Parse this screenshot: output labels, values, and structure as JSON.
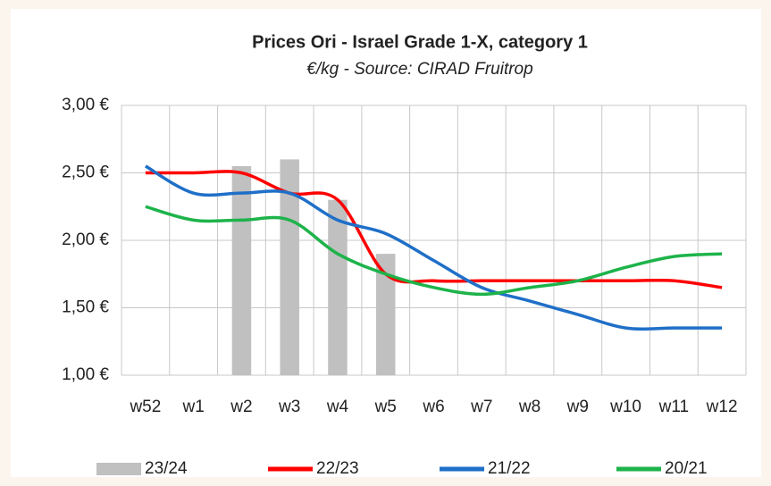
{
  "chart_data": {
    "type": "bar_line",
    "title": "Prices Ori - Israel Grade 1-X, category 1",
    "subtitle": "€/kg - Source: CIRAD Fruitrop",
    "categories": [
      "w52",
      "w1",
      "w2",
      "w3",
      "w4",
      "w5",
      "w6",
      "w7",
      "w8",
      "w9",
      "w10",
      "w11",
      "w12"
    ],
    "series": [
      {
        "name": "23/24",
        "type": "bar",
        "color": "#c0c0c0",
        "values": [
          null,
          null,
          2.55,
          2.6,
          2.3,
          1.9,
          null,
          null,
          null,
          null,
          null,
          null,
          null
        ]
      },
      {
        "name": "22/23",
        "type": "line",
        "color": "#ff0000",
        "values": [
          2.5,
          2.5,
          2.5,
          2.35,
          2.3,
          1.75,
          1.7,
          1.7,
          1.7,
          1.7,
          1.7,
          1.7,
          1.65
        ]
      },
      {
        "name": "21/22",
        "type": "line",
        "color": "#1f6fc8",
        "values": [
          2.55,
          2.35,
          2.35,
          2.35,
          2.15,
          2.05,
          1.85,
          1.65,
          1.55,
          1.45,
          1.35,
          1.35,
          1.35
        ]
      },
      {
        "name": "20/21",
        "type": "line",
        "color": "#1db34a",
        "values": [
          2.25,
          2.15,
          2.15,
          2.15,
          1.9,
          1.75,
          1.65,
          1.6,
          1.65,
          1.7,
          1.8,
          1.88,
          1.9
        ]
      }
    ],
    "ylim": [
      1,
      3
    ],
    "yticks": [
      {
        "value": 1,
        "label": "1,00 €"
      },
      {
        "value": 1.5,
        "label": "1,50 €"
      },
      {
        "value": 2,
        "label": "2,00 €"
      },
      {
        "value": 2.5,
        "label": "2,50 €"
      },
      {
        "value": 3,
        "label": "3,00 €"
      }
    ],
    "grid": true,
    "legend": "bottom"
  }
}
